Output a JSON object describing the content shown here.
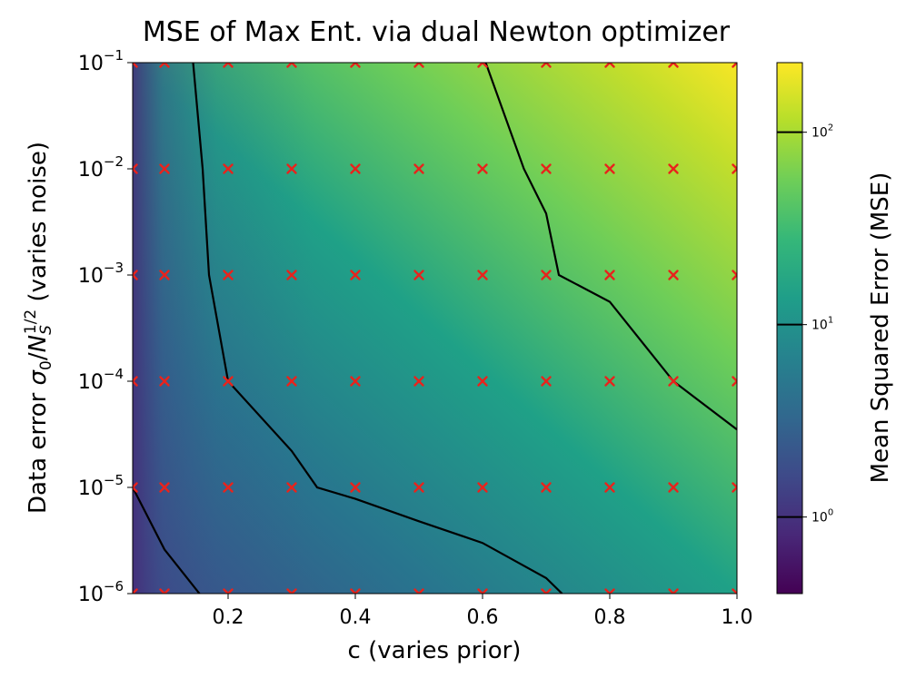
{
  "chart_data": {
    "type": "heatmap",
    "title": "MSE of Max Ent. via dual Newton optimizer",
    "xlabel": "c (varies prior)",
    "ylabel_prefix": "Data error ",
    "ylabel_sigma": "σ",
    "ylabel_sigma_sub": "0",
    "ylabel_N": "N",
    "ylabel_N_sub": "S",
    "ylabel_N_sup": "1/2",
    "ylabel_suffix": " (varies noise)",
    "colorbar_label": "Mean Squared Error (MSE)",
    "x_scale": "linear",
    "y_scale": "log",
    "colorbar_scale": "log",
    "colormap": "viridis",
    "xlim": [
      0.05,
      1.0
    ],
    "ylim": [
      1e-06,
      0.1
    ],
    "colorbar_range": [
      0.4,
      230
    ],
    "x_ticks": [
      "0.2",
      "0.4",
      "0.6",
      "0.8",
      "1.0"
    ],
    "x_tick_values": [
      0.2,
      0.4,
      0.6,
      0.8,
      1.0
    ],
    "y_ticks": [
      {
        "base": "10",
        "exp": "−6",
        "value": 1e-06
      },
      {
        "base": "10",
        "exp": "−5",
        "value": 1e-05
      },
      {
        "base": "10",
        "exp": "−4",
        "value": 0.0001
      },
      {
        "base": "10",
        "exp": "−3",
        "value": 0.001
      },
      {
        "base": "10",
        "exp": "−2",
        "value": 0.01
      },
      {
        "base": "10",
        "exp": "−1",
        "value": 0.1
      }
    ],
    "colorbar_ticks": [
      {
        "base": "10",
        "exp": "0",
        "value": 1
      },
      {
        "base": "10",
        "exp": "1",
        "value": 10
      },
      {
        "base": "10",
        "exp": "2",
        "value": 100
      }
    ],
    "sample_points": {
      "marker": "x",
      "color": "#e8231c",
      "c_values": [
        0.05,
        0.1,
        0.2,
        0.3,
        0.4,
        0.5,
        0.6,
        0.7,
        0.8,
        0.9,
        1.0
      ],
      "noise_values": [
        1e-06,
        1e-05,
        0.0001,
        0.001,
        0.01,
        0.1
      ]
    },
    "contours": [
      {
        "level": 1,
        "points": [
          [
            0.05,
            1e-05
          ],
          [
            0.1,
            2.6e-06
          ],
          [
            0.155,
            1e-06
          ]
        ]
      },
      {
        "level": 10,
        "points": [
          [
            0.145,
            0.1
          ],
          [
            0.16,
            0.01
          ],
          [
            0.17,
            0.001
          ],
          [
            0.2,
            0.0001
          ],
          [
            0.3,
            2.2e-05
          ],
          [
            0.34,
            1e-05
          ],
          [
            0.4,
            7.8e-06
          ],
          [
            0.5,
            4.8e-06
          ],
          [
            0.6,
            3e-06
          ],
          [
            0.7,
            1.4e-06
          ],
          [
            0.725,
            1e-06
          ]
        ]
      },
      {
        "level": 100,
        "points": [
          [
            0.605,
            0.1
          ],
          [
            0.665,
            0.01
          ],
          [
            0.7,
            0.0038
          ],
          [
            0.72,
            0.001
          ],
          [
            0.8,
            0.00056
          ],
          [
            0.9,
            0.0001
          ],
          [
            1.0,
            3.5e-05
          ]
        ]
      }
    ]
  }
}
